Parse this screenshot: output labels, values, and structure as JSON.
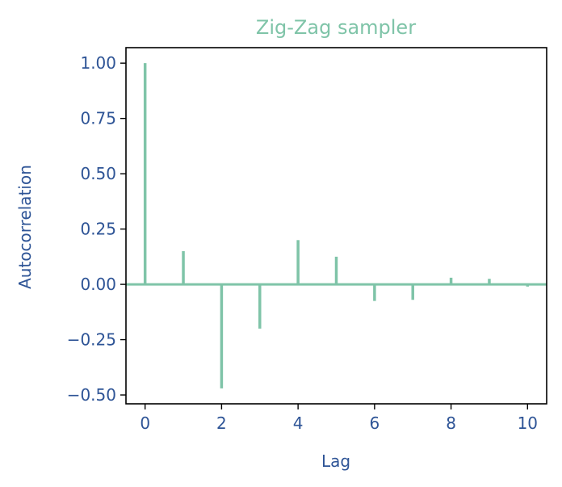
{
  "chart_data": {
    "type": "bar",
    "title": "Zig-Zag sampler",
    "xlabel": "Lag",
    "ylabel": "Autocorrelation",
    "x": [
      0,
      1,
      2,
      3,
      4,
      5,
      6,
      7,
      8,
      9,
      10
    ],
    "values": [
      1.0,
      0.15,
      -0.47,
      -0.2,
      0.2,
      0.125,
      -0.075,
      -0.07,
      0.03,
      0.025,
      -0.01
    ],
    "xlim": [
      -0.5,
      10.5
    ],
    "ylim": [
      -0.54,
      1.07
    ],
    "xticks": [
      0,
      2,
      4,
      6,
      8,
      10
    ],
    "xtick_labels": [
      "0",
      "2",
      "4",
      "6",
      "8",
      "10"
    ],
    "yticks": [
      1.0,
      0.75,
      0.5,
      0.25,
      0.0,
      -0.25,
      -0.5
    ],
    "ytick_labels": [
      "1.00",
      "0.75",
      "0.50",
      "0.25",
      "0.00",
      "−0.25",
      "−0.50"
    ],
    "grid": false,
    "zero_line": true,
    "colors": {
      "series": "#7fc4a8",
      "text": "#2e5496",
      "axes": "#000000"
    }
  }
}
